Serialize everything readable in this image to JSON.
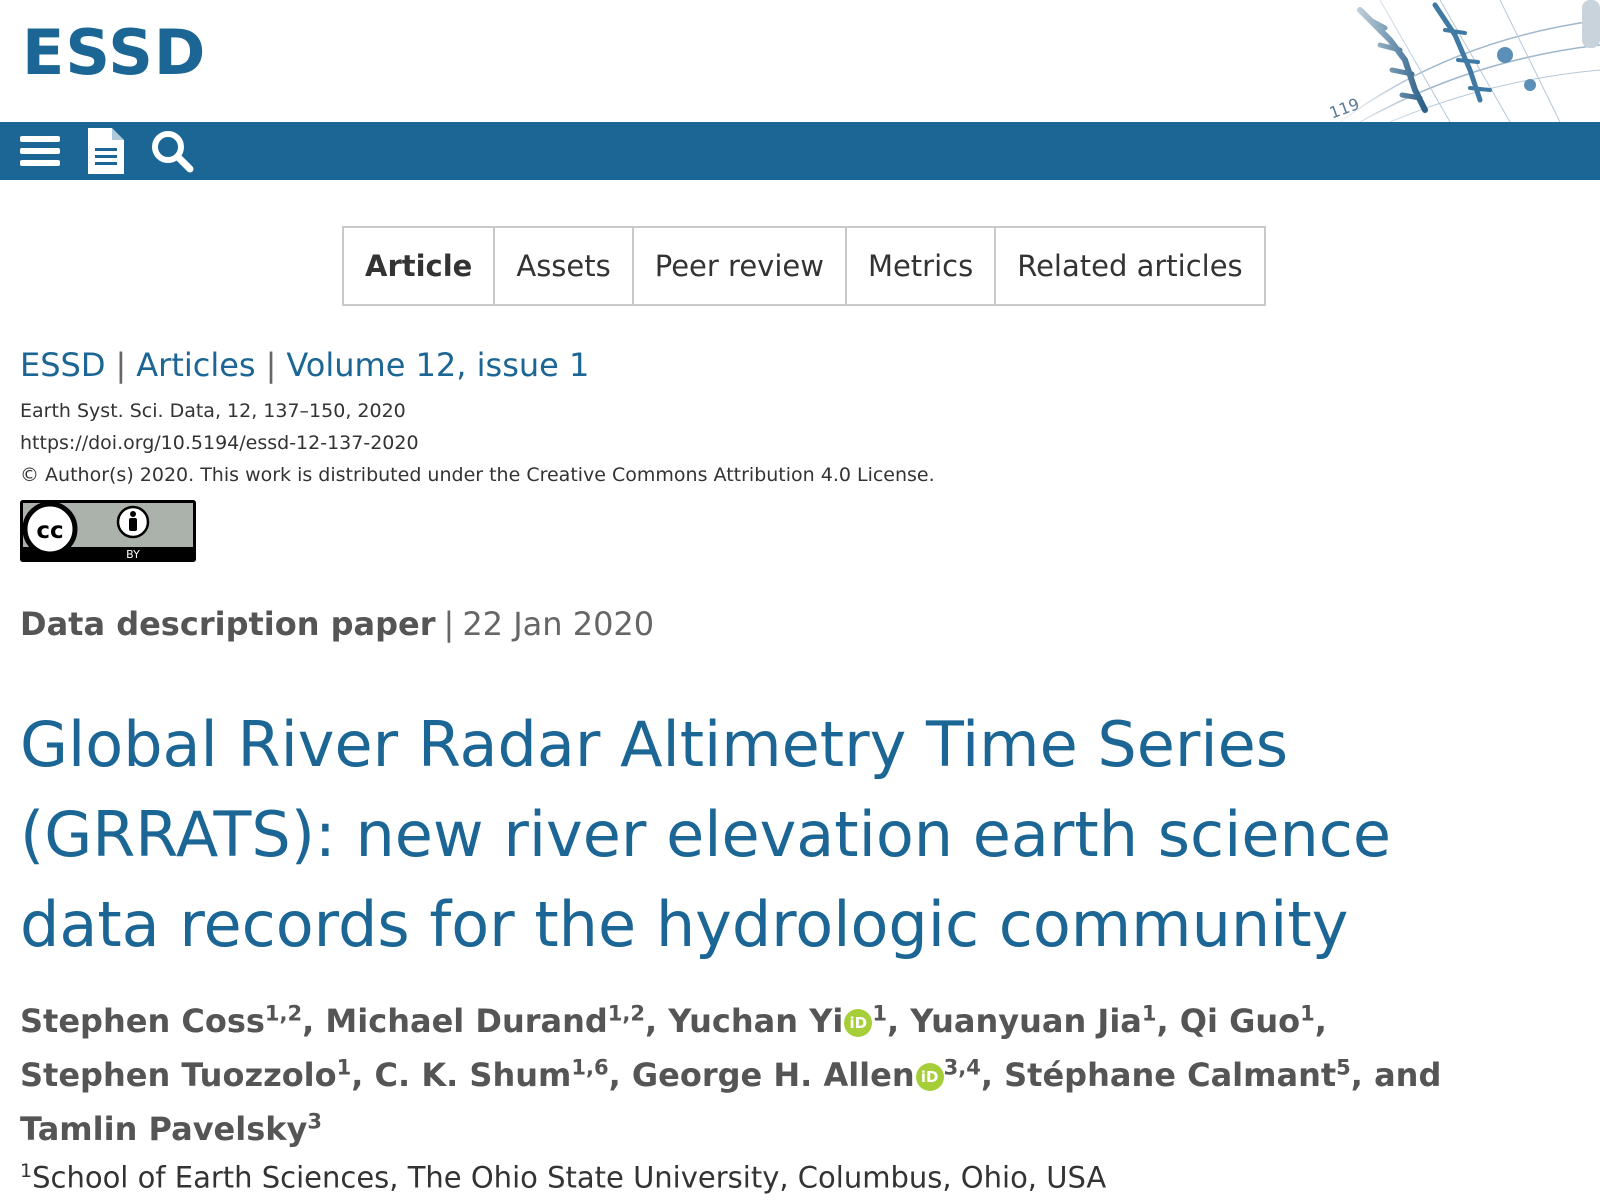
{
  "header": {
    "logo": "ESSD",
    "art_label": "119"
  },
  "navbar": {
    "icons": [
      "menu-icon",
      "document-icon",
      "search-icon"
    ],
    "color": "#1b6695"
  },
  "tabs": [
    {
      "label": "Article",
      "active": true
    },
    {
      "label": "Assets",
      "active": false
    },
    {
      "label": "Peer review",
      "active": false
    },
    {
      "label": "Metrics",
      "active": false
    },
    {
      "label": "Related articles",
      "active": false
    }
  ],
  "breadcrumb": {
    "journal": "ESSD",
    "sep": "|",
    "articles": "Articles",
    "volume": "Volume 12, issue 1"
  },
  "citation": {
    "reference": "Earth Syst. Sci. Data, 12, 137–150, 2020",
    "doi": "https://doi.org/10.5194/essd-12-137-2020",
    "license": "© Author(s) 2020. This work is distributed under the Creative Commons Attribution 4.0 License."
  },
  "license_badge": {
    "cc": "cc",
    "by": "BY"
  },
  "paper": {
    "type": "Data description paper",
    "sep": "|",
    "date": "22 Jan 2020",
    "title": "Global River Radar Altimetry Time Series (GRRATS): new river elevation earth science data records for the hydrologic community"
  },
  "authors": [
    {
      "name": "Stephen Coss",
      "aff": "1,2",
      "orcid": false,
      "after": ", "
    },
    {
      "name": "Michael Durand",
      "aff": "1,2",
      "orcid": false,
      "after": ", "
    },
    {
      "name": "Yuchan Yi",
      "aff": "1",
      "orcid": true,
      "after": ", "
    },
    {
      "name": "Yuanyuan Jia",
      "aff": "1",
      "orcid": false,
      "after": ", "
    },
    {
      "name": "Qi Guo",
      "aff": "1",
      "orcid": false,
      "after": ", "
    },
    {
      "name": "Stephen Tuozzolo",
      "aff": "1",
      "orcid": false,
      "after": ", "
    },
    {
      "name": "C. K. Shum",
      "aff": "1,6",
      "orcid": false,
      "after": ", "
    },
    {
      "name": "George H. Allen",
      "aff": "3,4",
      "orcid": true,
      "after": ", "
    },
    {
      "name": "Stéphane Calmant",
      "aff": "5",
      "orcid": false,
      "after": ", "
    },
    {
      "name": "and Tamlin Pavelsky",
      "aff": "3",
      "orcid": false,
      "after": ""
    }
  ],
  "orcid_label": "iD",
  "affiliation": {
    "num": "1",
    "text": "School of Earth Sciences, The Ohio State University, Columbus, Ohio, USA"
  }
}
